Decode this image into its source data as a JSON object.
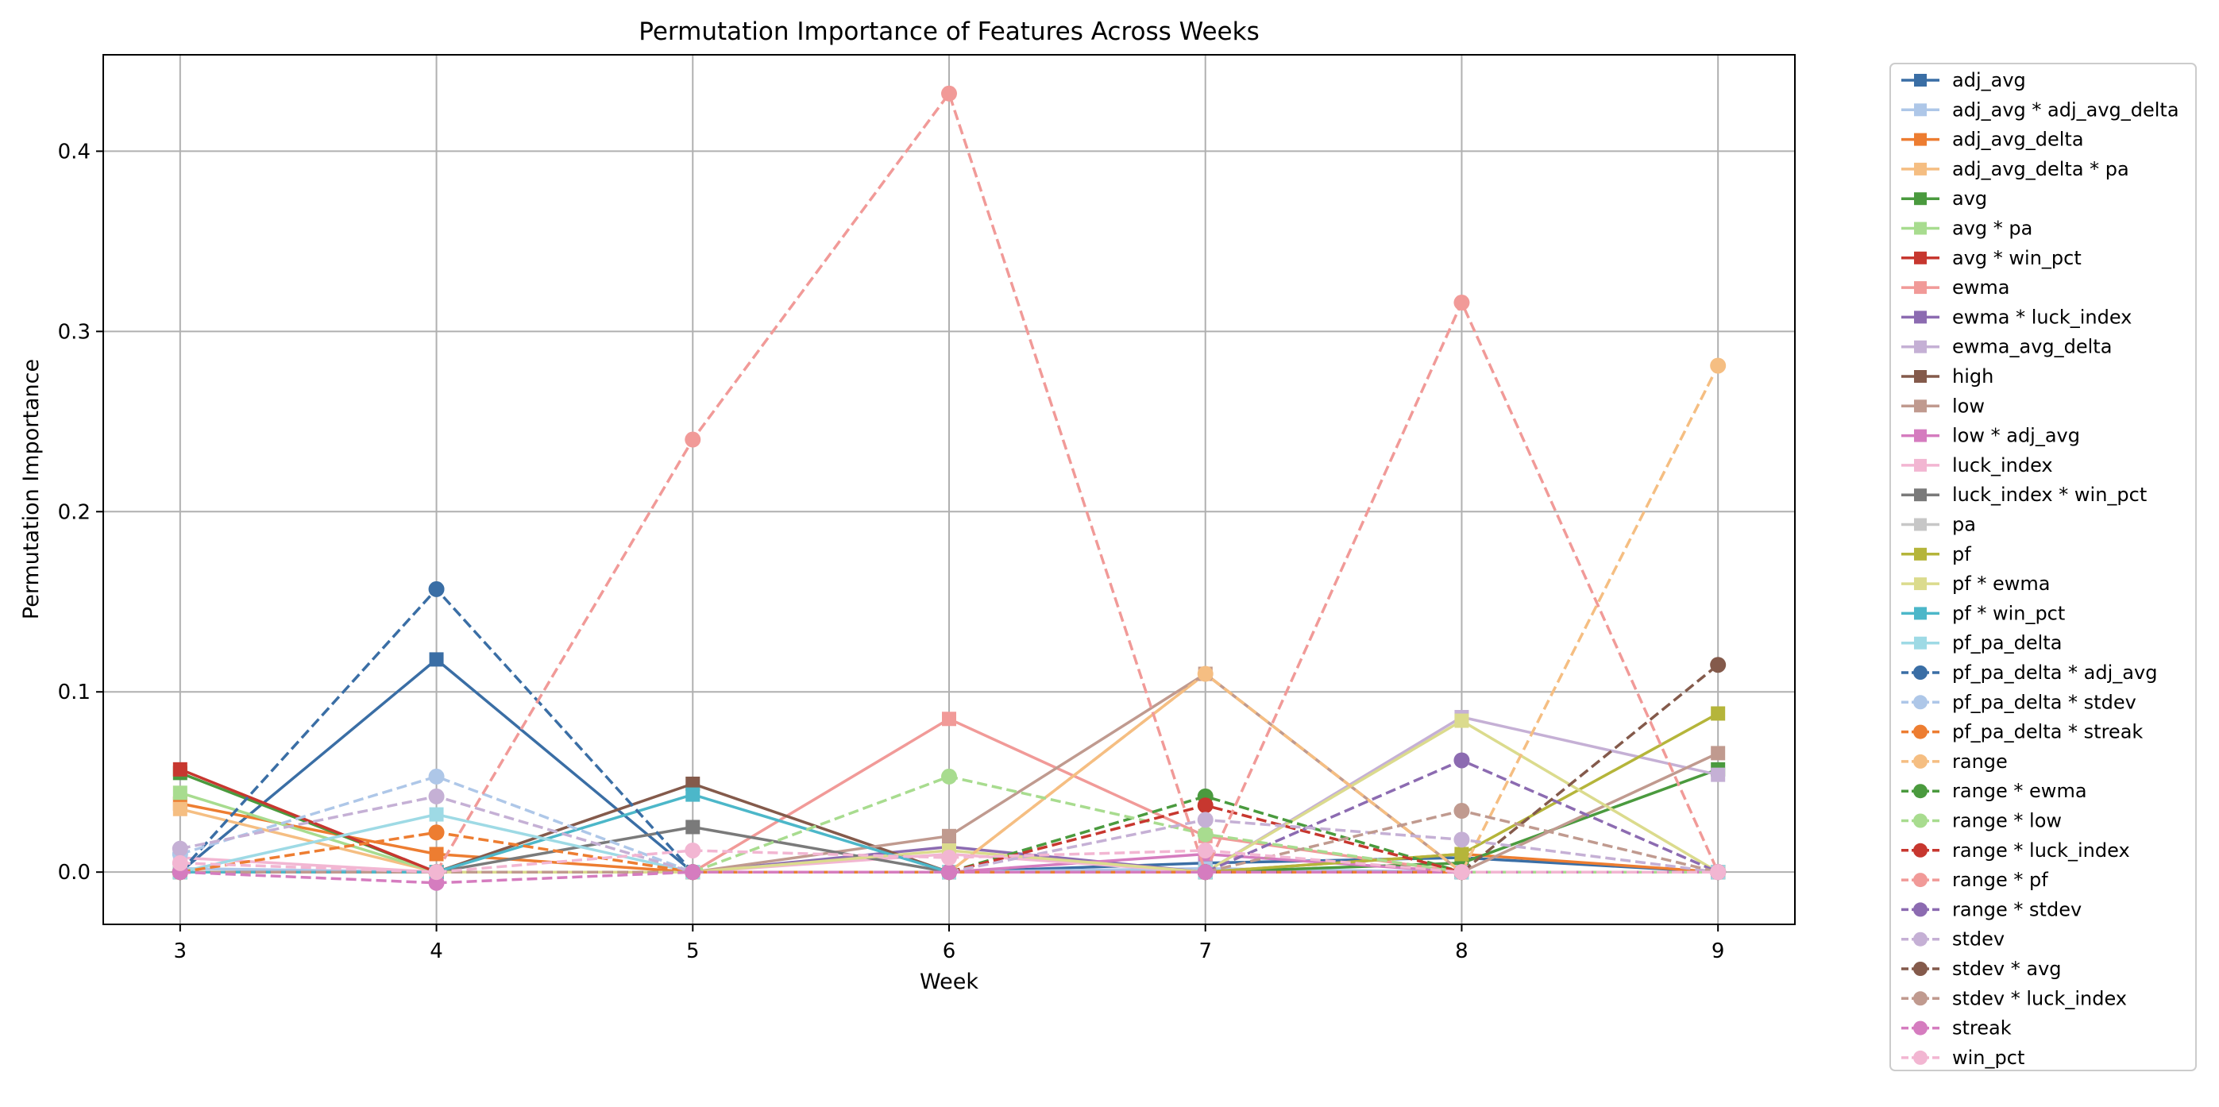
{
  "chart_data": {
    "type": "line",
    "title": "Permutation Importance of Features Across Weeks",
    "xlabel": "Week",
    "ylabel": "Permutation Importance",
    "x": [
      3,
      4,
      5,
      6,
      7,
      8,
      9
    ],
    "xlim": [
      2.7,
      9.3
    ],
    "ylim": [
      -0.029,
      0.4535
    ],
    "yticks": [
      0.0,
      0.1,
      0.2,
      0.3,
      0.4
    ],
    "ytick_labels": [
      "0.0",
      "0.1",
      "0.2",
      "0.3",
      "0.4"
    ],
    "xtick_labels": [
      "3",
      "4",
      "5",
      "6",
      "7",
      "8",
      "9"
    ],
    "grid": true,
    "legend_position": "outside-right",
    "series": [
      {
        "name": "adj_avg",
        "color": "#3a6ea5",
        "style": "solid",
        "marker": "square",
        "values": [
          0.0,
          0.118,
          0.0,
          0.0,
          0.005,
          0.008,
          0.0
        ]
      },
      {
        "name": "adj_avg * adj_avg_delta",
        "color": "#aec7e8",
        "style": "solid",
        "marker": "square",
        "values": [
          0.002,
          0.0,
          0.0,
          0.0,
          0.002,
          0.0,
          0.0
        ]
      },
      {
        "name": "adj_avg_delta",
        "color": "#ed7d31",
        "style": "solid",
        "marker": "square",
        "values": [
          0.038,
          0.01,
          0.0,
          0.0,
          0.0,
          0.01,
          0.0
        ]
      },
      {
        "name": "adj_avg_delta * pa",
        "color": "#f5be82",
        "style": "solid",
        "marker": "square",
        "values": [
          0.035,
          0.0,
          0.0,
          0.0,
          0.11,
          0.0,
          0.0
        ]
      },
      {
        "name": "avg",
        "color": "#4a9a3e",
        "style": "solid",
        "marker": "square",
        "values": [
          0.055,
          0.0,
          0.0,
          0.0,
          0.0,
          0.005,
          0.057
        ]
      },
      {
        "name": "avg * pa",
        "color": "#a8dc8f",
        "style": "solid",
        "marker": "square",
        "values": [
          0.044,
          0.0,
          0.0,
          0.0,
          0.0,
          0.0,
          0.0
        ]
      },
      {
        "name": "avg * win_pct",
        "color": "#c7372f",
        "style": "solid",
        "marker": "square",
        "values": [
          0.057,
          0.0,
          0.0,
          0.0,
          0.0,
          0.0,
          0.0
        ]
      },
      {
        "name": "ewma",
        "color": "#f19a98",
        "style": "solid",
        "marker": "square",
        "values": [
          0.0,
          0.0,
          0.0,
          0.085,
          0.02,
          0.0,
          0.0
        ]
      },
      {
        "name": "ewma * luck_index",
        "color": "#8c6bb1",
        "style": "solid",
        "marker": "square",
        "values": [
          0.0,
          0.0,
          0.0,
          0.014,
          0.0,
          0.0,
          0.0
        ]
      },
      {
        "name": "ewma_avg_delta",
        "color": "#c5b0d5",
        "style": "solid",
        "marker": "square",
        "values": [
          0.0,
          0.0,
          0.0,
          0.0,
          0.0,
          0.086,
          0.054
        ]
      },
      {
        "name": "high",
        "color": "#845a4b",
        "style": "solid",
        "marker": "square",
        "values": [
          0.0,
          0.0,
          0.049,
          0.0,
          0.0,
          0.0,
          0.0
        ]
      },
      {
        "name": "low",
        "color": "#c09a8f",
        "style": "solid",
        "marker": "square",
        "values": [
          0.0,
          0.0,
          0.0,
          0.02,
          0.11,
          0.0,
          0.066
        ]
      },
      {
        "name": "low * adj_avg",
        "color": "#d57cbf",
        "style": "solid",
        "marker": "square",
        "values": [
          0.0,
          0.0,
          0.0,
          0.0,
          0.01,
          0.0,
          0.0
        ]
      },
      {
        "name": "luck_index",
        "color": "#f2b6d2",
        "style": "solid",
        "marker": "square",
        "values": [
          0.008,
          0.0,
          0.0,
          0.01,
          0.0,
          0.0,
          0.0
        ]
      },
      {
        "name": "luck_index * win_pct",
        "color": "#7a7a7a",
        "style": "solid",
        "marker": "square",
        "values": [
          0.0,
          0.0,
          0.025,
          0.0,
          0.0,
          0.0,
          0.0
        ]
      },
      {
        "name": "pa",
        "color": "#c7c7c7",
        "style": "solid",
        "marker": "square",
        "values": [
          0.0,
          0.0,
          0.0,
          0.0,
          0.0,
          0.0,
          0.0
        ]
      },
      {
        "name": "pf",
        "color": "#b5b53a",
        "style": "solid",
        "marker": "square",
        "values": [
          0.0,
          0.0,
          0.0,
          0.0,
          0.0,
          0.01,
          0.088
        ]
      },
      {
        "name": "pf * ewma",
        "color": "#dbdb8d",
        "style": "solid",
        "marker": "square",
        "values": [
          0.0,
          0.0,
          0.0,
          0.012,
          0.0,
          0.084,
          0.0
        ]
      },
      {
        "name": "pf * win_pct",
        "color": "#4cb7c9",
        "style": "solid",
        "marker": "square",
        "values": [
          0.0,
          0.0,
          0.043,
          0.0,
          0.0,
          0.0,
          0.0
        ]
      },
      {
        "name": "pf_pa_delta",
        "color": "#9edae5",
        "style": "solid",
        "marker": "square",
        "values": [
          0.0,
          0.032,
          0.0,
          0.0,
          0.0,
          0.0,
          0.0
        ]
      },
      {
        "name": "pf_pa_delta * adj_avg",
        "color": "#3a6ea5",
        "style": "dashed",
        "marker": "circle",
        "values": [
          0.0,
          0.157,
          0.0,
          0.0,
          0.0,
          0.0,
          0.0
        ]
      },
      {
        "name": "pf_pa_delta * stdev",
        "color": "#aec7e8",
        "style": "dashed",
        "marker": "circle",
        "values": [
          0.01,
          0.053,
          0.0,
          0.0,
          0.0,
          0.0,
          0.0
        ]
      },
      {
        "name": "pf_pa_delta * streak",
        "color": "#ed7d31",
        "style": "dashed",
        "marker": "circle",
        "values": [
          0.0,
          0.022,
          0.0,
          0.0,
          0.0,
          0.0,
          0.0
        ]
      },
      {
        "name": "range",
        "color": "#f5be82",
        "style": "dashed",
        "marker": "circle",
        "values": [
          0.0,
          0.0,
          0.0,
          0.0,
          0.11,
          0.0,
          0.281
        ]
      },
      {
        "name": "range * ewma",
        "color": "#4a9a3e",
        "style": "dashed",
        "marker": "circle",
        "values": [
          0.0,
          0.0,
          0.0,
          0.0,
          0.042,
          0.0,
          0.0
        ]
      },
      {
        "name": "range * low",
        "color": "#a8dc8f",
        "style": "dashed",
        "marker": "circle",
        "values": [
          0.0,
          0.0,
          0.0,
          0.053,
          0.021,
          0.0,
          0.0
        ]
      },
      {
        "name": "range * luck_index",
        "color": "#c7372f",
        "style": "dashed",
        "marker": "circle",
        "values": [
          0.0,
          0.0,
          0.0,
          0.0,
          0.037,
          0.0,
          0.0
        ]
      },
      {
        "name": "range * pf",
        "color": "#f19a98",
        "style": "dashed",
        "marker": "circle",
        "values": [
          0.0,
          0.0,
          0.24,
          0.432,
          0.0,
          0.316,
          0.0
        ]
      },
      {
        "name": "range * stdev",
        "color": "#8c6bb1",
        "style": "dashed",
        "marker": "circle",
        "values": [
          0.0,
          0.0,
          0.0,
          0.0,
          0.0,
          0.062,
          0.0
        ]
      },
      {
        "name": "stdev",
        "color": "#c5b0d5",
        "style": "dashed",
        "marker": "circle",
        "values": [
          0.013,
          0.042,
          0.0,
          0.0,
          0.029,
          0.018,
          0.0
        ]
      },
      {
        "name": "stdev * avg",
        "color": "#845a4b",
        "style": "dashed",
        "marker": "circle",
        "values": [
          0.0,
          0.0,
          0.0,
          0.0,
          0.0,
          0.0,
          0.115
        ]
      },
      {
        "name": "stdev * luck_index",
        "color": "#c09a8f",
        "style": "dashed",
        "marker": "circle",
        "values": [
          0.0,
          0.0,
          0.0,
          0.0,
          0.0,
          0.034,
          0.0
        ]
      },
      {
        "name": "streak",
        "color": "#d57cbf",
        "style": "dashed",
        "marker": "circle",
        "values": [
          0.0,
          -0.006,
          0.0,
          0.0,
          0.0,
          0.0,
          0.0
        ]
      },
      {
        "name": "win_pct",
        "color": "#f2b6d2",
        "style": "dashed",
        "marker": "circle",
        "values": [
          0.005,
          0.0,
          0.012,
          0.008,
          0.012,
          0.0,
          0.0
        ]
      }
    ]
  }
}
